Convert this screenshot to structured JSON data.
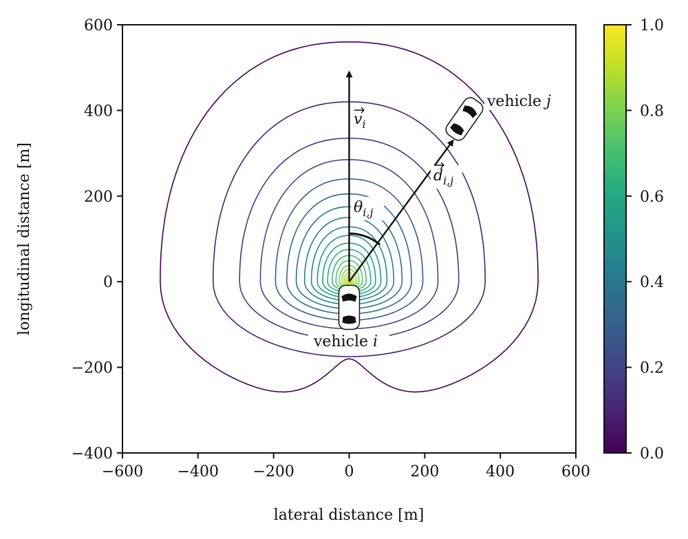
{
  "chart_data": {
    "type": "contour",
    "xlabel": "lateral distance [m]",
    "ylabel": "longitudinal distance [m]",
    "xlim": [
      -600,
      600
    ],
    "ylim": [
      -400,
      600
    ],
    "xticks": [
      -600,
      -400,
      -200,
      0,
      200,
      400,
      600
    ],
    "yticks": [
      -400,
      -200,
      0,
      200,
      400,
      600
    ],
    "xtick_labels": [
      "−600",
      "−400",
      "−200",
      "0",
      "200",
      "400",
      "600"
    ],
    "ytick_labels": [
      "−400",
      "−200",
      "0",
      "200",
      "400",
      "600"
    ],
    "grid": false,
    "colormap": "viridis",
    "colorbar": {
      "range": [
        0.0,
        1.0
      ],
      "ticks": [
        0.0,
        0.2,
        0.4,
        0.6,
        0.8,
        1.0
      ],
      "tick_labels": [
        "0.0",
        "0.2",
        "0.4",
        "0.6",
        "0.8",
        "1.0"
      ]
    },
    "contours": [
      {
        "level": 0.02,
        "forward_extent": 560,
        "lateral_half_width": 500,
        "rear_extent": 285,
        "rear_notch": 180,
        "color": "#440154"
      },
      {
        "level": 0.08,
        "forward_extent": 420,
        "lateral_half_width": 360,
        "rear_extent": 175,
        "color": "#46246e"
      },
      {
        "level": 0.13,
        "forward_extent": 335,
        "lateral_half_width": 290,
        "rear_extent": 135,
        "color": "#443a83"
      },
      {
        "level": 0.18,
        "forward_extent": 285,
        "lateral_half_width": 235,
        "rear_extent": 110,
        "color": "#3e4a89"
      },
      {
        "level": 0.23,
        "forward_extent": 240,
        "lateral_half_width": 195,
        "rear_extent": 90,
        "color": "#375a8c"
      },
      {
        "level": 0.28,
        "forward_extent": 205,
        "lateral_half_width": 165,
        "rear_extent": 75,
        "color": "#31688e"
      },
      {
        "level": 0.33,
        "forward_extent": 175,
        "lateral_half_width": 140,
        "rear_extent": 63,
        "color": "#2c738e"
      },
      {
        "level": 0.38,
        "forward_extent": 150,
        "lateral_half_width": 118,
        "rear_extent": 53,
        "color": "#277f8e"
      },
      {
        "level": 0.43,
        "forward_extent": 128,
        "lateral_half_width": 100,
        "rear_extent": 44,
        "color": "#228b8d"
      },
      {
        "level": 0.48,
        "forward_extent": 108,
        "lateral_half_width": 84,
        "rear_extent": 37,
        "color": "#1f968b"
      },
      {
        "level": 0.53,
        "forward_extent": 90,
        "lateral_half_width": 70,
        "rear_extent": 31,
        "color": "#20a386"
      },
      {
        "level": 0.58,
        "forward_extent": 75,
        "lateral_half_width": 57,
        "rear_extent": 25,
        "color": "#2ab07f"
      },
      {
        "level": 0.63,
        "forward_extent": 61,
        "lateral_half_width": 45,
        "rear_extent": 20,
        "color": "#3bbb75"
      },
      {
        "level": 0.68,
        "forward_extent": 49,
        "lateral_half_width": 35,
        "rear_extent": 16,
        "color": "#52c569"
      },
      {
        "level": 0.73,
        "forward_extent": 38,
        "lateral_half_width": 26,
        "rear_extent": 12,
        "color": "#6ccd5a"
      },
      {
        "level": 0.78,
        "forward_extent": 29,
        "lateral_half_width": 19,
        "rear_extent": 9,
        "color": "#89d548"
      },
      {
        "level": 0.83,
        "forward_extent": 21,
        "lateral_half_width": 13,
        "rear_extent": 6,
        "color": "#a8db34"
      },
      {
        "level": 0.88,
        "forward_extent": 14,
        "lateral_half_width": 8,
        "rear_extent": 4,
        "color": "#c8e020"
      },
      {
        "level": 0.93,
        "forward_extent": 8,
        "lateral_half_width": 5,
        "rear_extent": 2,
        "color": "#e5e419"
      }
    ],
    "vehicles": [
      {
        "label": "vehicle i",
        "name": "vehicle",
        "subscript": "i",
        "x": 0,
        "y": -60,
        "heading_deg": 0
      },
      {
        "label": "vehicle j",
        "name": "vehicle",
        "subscript": "j",
        "x": 305,
        "y": 380,
        "heading_deg": 35
      }
    ],
    "vectors": [
      {
        "label": "v_i",
        "symbol": "v",
        "subscript": "i",
        "from": [
          0,
          0
        ],
        "to": [
          0,
          490
        ]
      },
      {
        "label": "d_i,j",
        "symbol": "d",
        "subscript": "i,j",
        "from": [
          0,
          0
        ],
        "to": [
          275,
          330
        ]
      }
    ],
    "angle": {
      "label": "theta_i,j",
      "symbol": "θ",
      "subscript": "i,j"
    }
  }
}
